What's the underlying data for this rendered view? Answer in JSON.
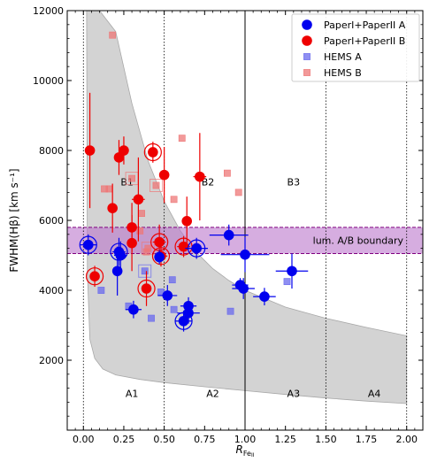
{
  "chart_data": {
    "type": "scatter",
    "xlabel": "R",
    "xlabel_sub": "Fe",
    "xlabel_subsub": "II",
    "ylabel": "FWHM(Hβ) [km s⁻¹]",
    "xlim": [
      -0.1,
      2.1
    ],
    "ylim": [
      0,
      12000
    ],
    "x_ticks": [
      0.0,
      0.25,
      0.5,
      0.75,
      1.0,
      1.25,
      1.5,
      1.75,
      2.0
    ],
    "x_tick_labels": [
      "0.00",
      "0.25",
      "0.50",
      "0.75",
      "1.00",
      "1.25",
      "1.50",
      "1.75",
      "2.00"
    ],
    "y_ticks": [
      2000,
      4000,
      6000,
      8000,
      10000,
      12000
    ],
    "y_tick_labels": [
      "2000",
      "4000",
      "6000",
      "8000",
      "10000",
      "12000"
    ],
    "grid": false,
    "vertical_lines": {
      "dotted": [
        0.0,
        0.5,
        1.5,
        2.0
      ],
      "solid": [
        1.0
      ]
    },
    "band": {
      "label": "lum. A/B boundary",
      "y_range": [
        5050,
        5800
      ],
      "color": "#bb77cc"
    },
    "shaded_region": {
      "color": "#d3d3d3",
      "upper_curve": [
        [
          0.1,
          12000
        ],
        [
          0.2,
          11400
        ],
        [
          0.3,
          9350
        ],
        [
          0.4,
          7700
        ],
        [
          0.5,
          6550
        ],
        [
          0.6,
          5700
        ],
        [
          0.7,
          5080
        ],
        [
          0.8,
          4620
        ],
        [
          0.9,
          4280
        ],
        [
          1.0,
          4000
        ],
        [
          1.25,
          3520
        ],
        [
          1.5,
          3200
        ],
        [
          1.75,
          2940
        ],
        [
          2.0,
          2700
        ]
      ],
      "lower_curve": [
        [
          0.02,
          12000
        ],
        [
          0.025,
          4500
        ],
        [
          0.04,
          2600
        ],
        [
          0.07,
          2050
        ],
        [
          0.12,
          1750
        ],
        [
          0.2,
          1580
        ],
        [
          0.35,
          1450
        ],
        [
          0.5,
          1360
        ],
        [
          0.75,
          1240
        ],
        [
          1.0,
          1130
        ],
        [
          1.25,
          1020
        ],
        [
          1.5,
          920
        ],
        [
          1.75,
          830
        ],
        [
          2.0,
          760
        ]
      ]
    },
    "region_labels": [
      {
        "text": "B1",
        "x": 0.27,
        "y": 7100
      },
      {
        "text": "B2",
        "x": 0.77,
        "y": 7100
      },
      {
        "text": "B3",
        "x": 1.3,
        "y": 7100
      },
      {
        "text": "A1",
        "x": 0.3,
        "y": 1050
      },
      {
        "text": "A2",
        "x": 0.8,
        "y": 1050
      },
      {
        "text": "A3",
        "x": 1.3,
        "y": 1050
      },
      {
        "text": "A4",
        "x": 1.8,
        "y": 1050
      }
    ],
    "legend_position": "top-right",
    "series": [
      {
        "name": "PaperI+PaperII A",
        "marker": "circle",
        "color": "#0000ee",
        "points": [
          {
            "x": 0.03,
            "y": 5300,
            "xerr": 0.05,
            "yerr": 300,
            "ring": true
          },
          {
            "x": 0.21,
            "y": 4550,
            "xerr": 0.03,
            "yerr": 700
          },
          {
            "x": 0.22,
            "y": 5100,
            "xerr": 0.04,
            "yerr": 400,
            "ring": true
          },
          {
            "x": 0.23,
            "y": 5000,
            "xerr": 0.04,
            "yerr": 400
          },
          {
            "x": 0.31,
            "y": 3450,
            "xerr": 0.05,
            "yerr": 250
          },
          {
            "x": 0.47,
            "y": 4950,
            "xerr": 0.03,
            "yerr": 200
          },
          {
            "x": 0.52,
            "y": 3850,
            "xerr": 0.06,
            "yerr": 300
          },
          {
            "x": 0.62,
            "y": 3120,
            "xerr": 0.05,
            "yerr": 300,
            "ring": true
          },
          {
            "x": 0.65,
            "y": 3350,
            "xerr": 0.07,
            "yerr": 300
          },
          {
            "x": 0.65,
            "y": 3550,
            "xerr": 0.05,
            "yerr": 250
          },
          {
            "x": 0.7,
            "y": 5200,
            "xerr": 0.07,
            "yerr": 300,
            "ring": true
          },
          {
            "x": 0.9,
            "y": 5580,
            "xerr": 0.12,
            "yerr": 300
          },
          {
            "x": 0.97,
            "y": 4150,
            "xerr": 0.05,
            "yerr": 200
          },
          {
            "x": 0.99,
            "y": 4050,
            "xerr": 0.07,
            "yerr": 300
          },
          {
            "x": 1.0,
            "y": 5020,
            "xerr": 0.15,
            "yerr": 500
          },
          {
            "x": 1.12,
            "y": 3820,
            "xerr": 0.07,
            "yerr": 250
          },
          {
            "x": 1.29,
            "y": 4550,
            "xerr": 0.1,
            "yerr": 500
          }
        ]
      },
      {
        "name": "PaperI+PaperII B",
        "marker": "circle",
        "color": "#ee0000",
        "points": [
          {
            "x": 0.04,
            "y": 8000,
            "xerr": 0.03,
            "yerr": 1650
          },
          {
            "x": 0.07,
            "y": 4400,
            "xerr": 0.03,
            "yerr": 300,
            "ring": true
          },
          {
            "x": 0.18,
            "y": 6350,
            "xerr": 0.02,
            "yerr": 700
          },
          {
            "x": 0.22,
            "y": 7800,
            "xerr": 0.03,
            "yerr": 500
          },
          {
            "x": 0.25,
            "y": 8000,
            "xerr": 0.02,
            "yerr": 400
          },
          {
            "x": 0.3,
            "y": 5800,
            "xerr": 0.03,
            "yerr": 700
          },
          {
            "x": 0.3,
            "y": 5350,
            "xerr": 0.03,
            "yerr": 800
          },
          {
            "x": 0.34,
            "y": 6600,
            "xerr": 0.04,
            "yerr": 1200
          },
          {
            "x": 0.39,
            "y": 4050,
            "xerr": 0.03,
            "yerr": 500,
            "ring": true
          },
          {
            "x": 0.43,
            "y": 7950,
            "xerr": 0.03,
            "yerr": 300,
            "ring": true
          },
          {
            "x": 0.47,
            "y": 5380,
            "xerr": 0.04,
            "yerr": 500,
            "ring": true
          },
          {
            "x": 0.48,
            "y": 4980,
            "xerr": 0.04,
            "yerr": 300,
            "ring": true
          },
          {
            "x": 0.5,
            "y": 7300,
            "xerr": 0.03,
            "yerr": 800
          },
          {
            "x": 0.62,
            "y": 5250,
            "xerr": 0.04,
            "yerr": 300,
            "ring": true
          },
          {
            "x": 0.64,
            "y": 5980,
            "xerr": 0.03,
            "yerr": 700
          },
          {
            "x": 0.72,
            "y": 7250,
            "xerr": 0.04,
            "yerr": 1250
          }
        ]
      },
      {
        "name": "HEMS A",
        "marker": "square",
        "color": "#6a6aee",
        "points": [
          {
            "x": 0.11,
            "y": 4000
          },
          {
            "x": 0.28,
            "y": 3550
          },
          {
            "x": 0.38,
            "y": 4550,
            "boxed": true
          },
          {
            "x": 0.42,
            "y": 3200
          },
          {
            "x": 0.48,
            "y": 3950
          },
          {
            "x": 0.55,
            "y": 4300
          },
          {
            "x": 0.56,
            "y": 3450
          },
          {
            "x": 0.62,
            "y": 3150
          },
          {
            "x": 0.91,
            "y": 3400
          },
          {
            "x": 1.26,
            "y": 4250
          }
        ]
      },
      {
        "name": "HEMS B",
        "marker": "square",
        "color": "#ee7777",
        "points": [
          {
            "x": 0.18,
            "y": 11300
          },
          {
            "x": 0.13,
            "y": 6900
          },
          {
            "x": 0.16,
            "y": 6900
          },
          {
            "x": 0.3,
            "y": 7200,
            "boxed": true
          },
          {
            "x": 0.35,
            "y": 5700
          },
          {
            "x": 0.36,
            "y": 6200
          },
          {
            "x": 0.39,
            "y": 5100
          },
          {
            "x": 0.4,
            "y": 5200,
            "boxed": true
          },
          {
            "x": 0.45,
            "y": 7000,
            "boxed": true
          },
          {
            "x": 0.56,
            "y": 6600
          },
          {
            "x": 0.61,
            "y": 8350
          },
          {
            "x": 0.89,
            "y": 7350
          },
          {
            "x": 0.96,
            "y": 6800
          }
        ]
      }
    ]
  }
}
